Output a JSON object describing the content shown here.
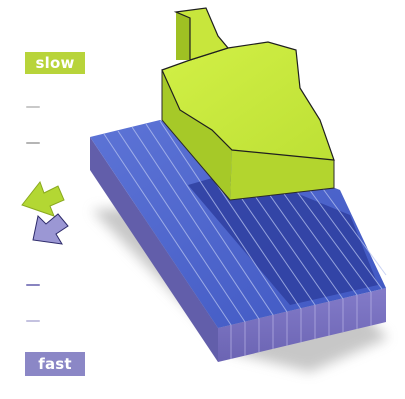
{
  "labels": {
    "slow": "slow",
    "fast": "fast"
  },
  "colors": {
    "slow_label_bg": "#b8d43a",
    "fast_label_bg": "#8b87c6",
    "green_face": "#c6e83a",
    "green_side": "#a9cc25",
    "blue_face": "#4c63c9",
    "blue_side": "#7b74c2",
    "tick_top": "#bdbdbd",
    "tick_bottom": "#7d79b8"
  },
  "icons": {
    "up_arrow": "green-up-left-arrow-icon",
    "down_arrow": "purple-down-left-arrow-icon"
  }
}
